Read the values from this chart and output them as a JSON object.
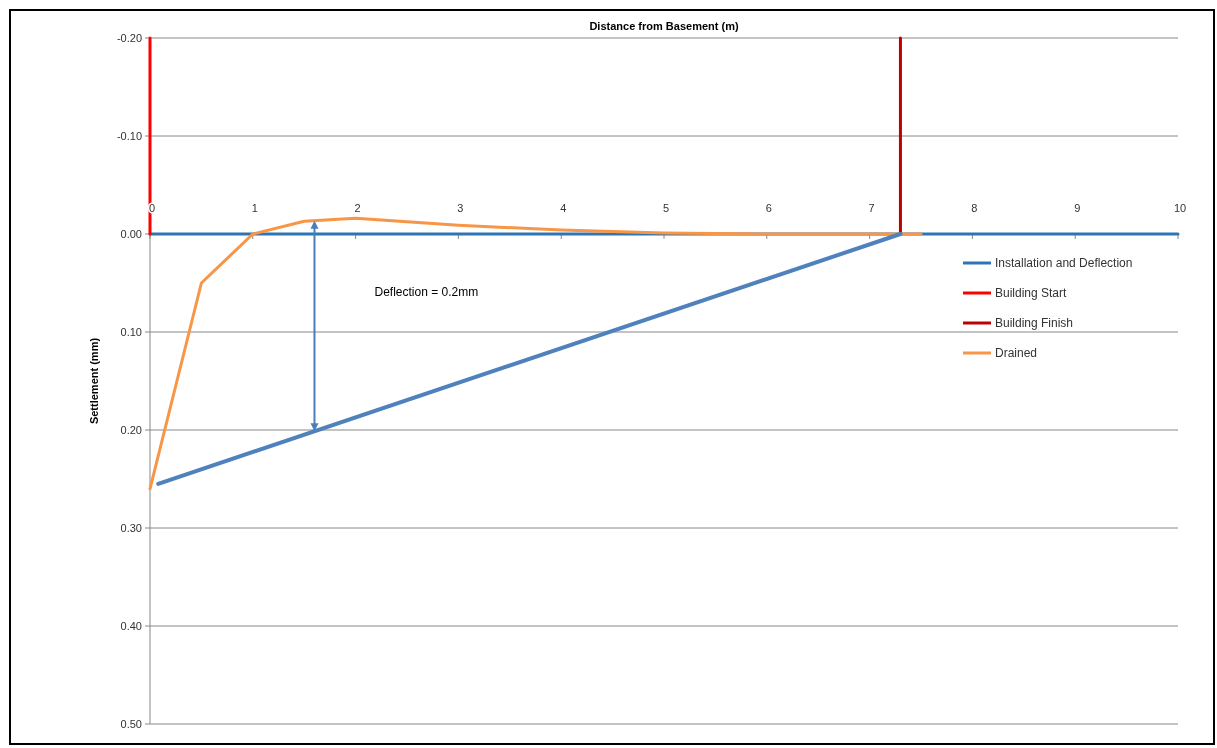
{
  "chart_data": {
    "type": "line",
    "xlabel": "Distance from Basement (m)",
    "ylabel": "Settlement (mm)",
    "xlim": [
      0,
      10
    ],
    "xticks": [
      0,
      1,
      2,
      3,
      4,
      5,
      6,
      7,
      8,
      9,
      10
    ],
    "ylim": [
      0.5,
      -0.2
    ],
    "yticks": [
      {
        "value": -0.2,
        "label": "-0.20"
      },
      {
        "value": -0.1,
        "label": "-0.10"
      },
      {
        "value": 0,
        "label": "0.00"
      },
      {
        "value": 0.1,
        "label": "0.10"
      },
      {
        "value": 0.2,
        "label": "0.20"
      },
      {
        "value": 0.3,
        "label": "0.30"
      },
      {
        "value": 0.4,
        "label": "0.40"
      },
      {
        "value": 0.5,
        "label": "0.50"
      }
    ],
    "grid": "y",
    "legend": "right",
    "marker": "none",
    "line_style": "solid",
    "series": [
      {
        "name": "Installation and Deflection",
        "color": "#2e75b6",
        "x": [
          0,
          10
        ],
        "values": [
          0,
          0
        ]
      },
      {
        "name": "Building Start",
        "color": "#ff0000",
        "x": [
          0,
          0
        ],
        "values": [
          0,
          -0.2
        ]
      },
      {
        "name": "Building Finish",
        "color": "#c00000",
        "x": [
          7.3,
          7.3
        ],
        "values": [
          0,
          -0.2
        ]
      },
      {
        "name": "Drained",
        "color": "#f79646",
        "x": [
          0,
          0.5,
          1,
          1.5,
          2,
          3,
          4,
          5,
          6,
          7.3,
          7.5
        ],
        "values": [
          0.26,
          0.05,
          0,
          -0.013,
          -0.016,
          -0.009,
          -0.004,
          -0.001,
          0,
          0,
          0
        ]
      },
      {
        "color": "#4f81bd",
        "x": [
          0.08,
          7.3
        ],
        "values": [
          0.255,
          0
        ]
      }
    ],
    "annotations": [
      "Deflection = 0.2mm"
    ]
  }
}
